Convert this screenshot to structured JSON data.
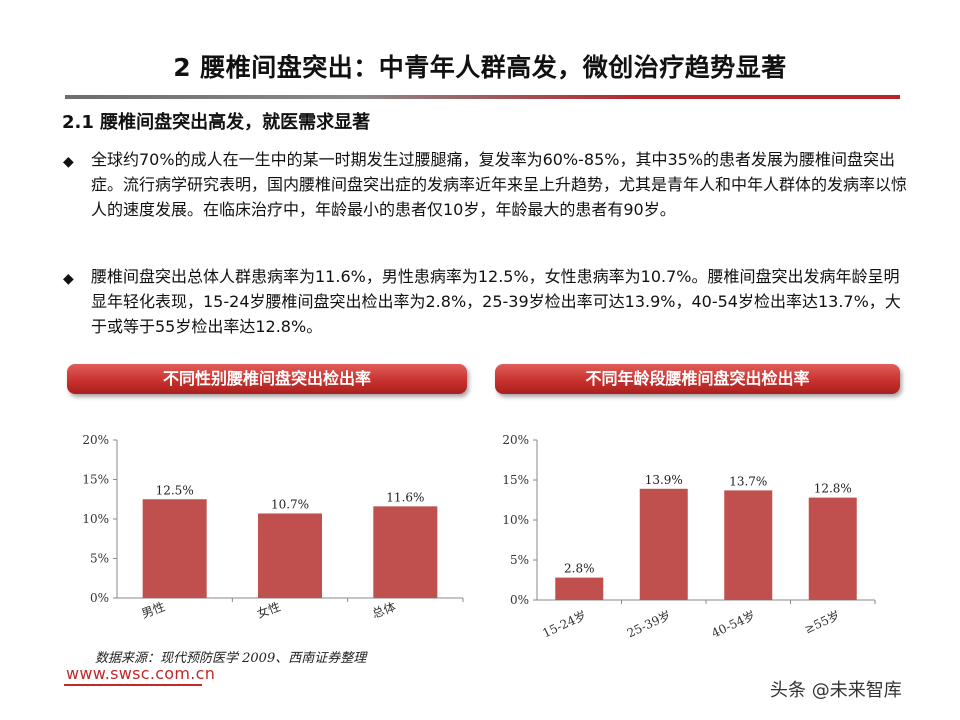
{
  "title": "2  腰椎间盘突出：中青年人群高发，微创治疗趋势显著",
  "section": "2.1 腰椎间盘突出高发，就医需求显著",
  "bullets": [
    "全球约70%的成人在一生中的某一时期发生过腰腿痛，复发率为60%-85%，其中35%的患者发展为腰椎间盘突出症。流行病学研究表明，国内腰椎间盘突出症的发病率近年来呈上升趋势，尤其是青年人和中年人群体的发病率以惊人的速度发展。在临床治疗中，年龄最小的患者仅10岁，年龄最大的患者有90岁。",
    "腰椎间盘突出总体人群患病率为11.6%，男性患病率为12.5%，女性患病率为10.7%。腰椎间盘突出发病年龄呈明显年轻化表现，15-24岁腰椎间盘突出检出率为2.8%，25-39岁检出率可达13.9%，40-54岁检出率达13.7%，大于或等于55岁检出率达12.8%。"
  ],
  "bullet_icon": "diamond-bullet-icon",
  "chart_banners": [
    "不同性别腰椎间盘突出检出率",
    "不同年龄段腰椎间盘突出检出率"
  ],
  "chart_data": [
    {
      "type": "bar",
      "title": "不同性别腰椎间盘突出检出率",
      "categories": [
        "男性",
        "女性",
        "总体"
      ],
      "values": [
        12.5,
        10.7,
        11.6
      ],
      "data_labels": [
        "12.5%",
        "10.7%",
        "11.6%"
      ],
      "yticks": [
        "0%",
        "5%",
        "10%",
        "15%",
        "20%"
      ],
      "ylim": [
        0,
        20
      ],
      "grid": false,
      "bar_color": "#c0504d"
    },
    {
      "type": "bar",
      "title": "不同年龄段腰椎间盘突出检出率",
      "categories": [
        "15-24岁",
        "25-39岁",
        "40-54岁",
        "≥55岁"
      ],
      "values": [
        2.8,
        13.9,
        13.7,
        12.8
      ],
      "data_labels": [
        "2.8%",
        "13.9%",
        "13.7%",
        "12.8%"
      ],
      "yticks": [
        "0%",
        "5%",
        "10%",
        "15%",
        "20%"
      ],
      "ylim": [
        0,
        20
      ],
      "grid": false,
      "bar_color": "#c0504d"
    }
  ],
  "source": "数据来源：现代预防医学 2009、西南证券整理",
  "site": "www.swsc.com.cn",
  "watermark": "头条 @未来智库",
  "colors": {
    "accent": "#c0282a",
    "bar": "#c0504d"
  }
}
